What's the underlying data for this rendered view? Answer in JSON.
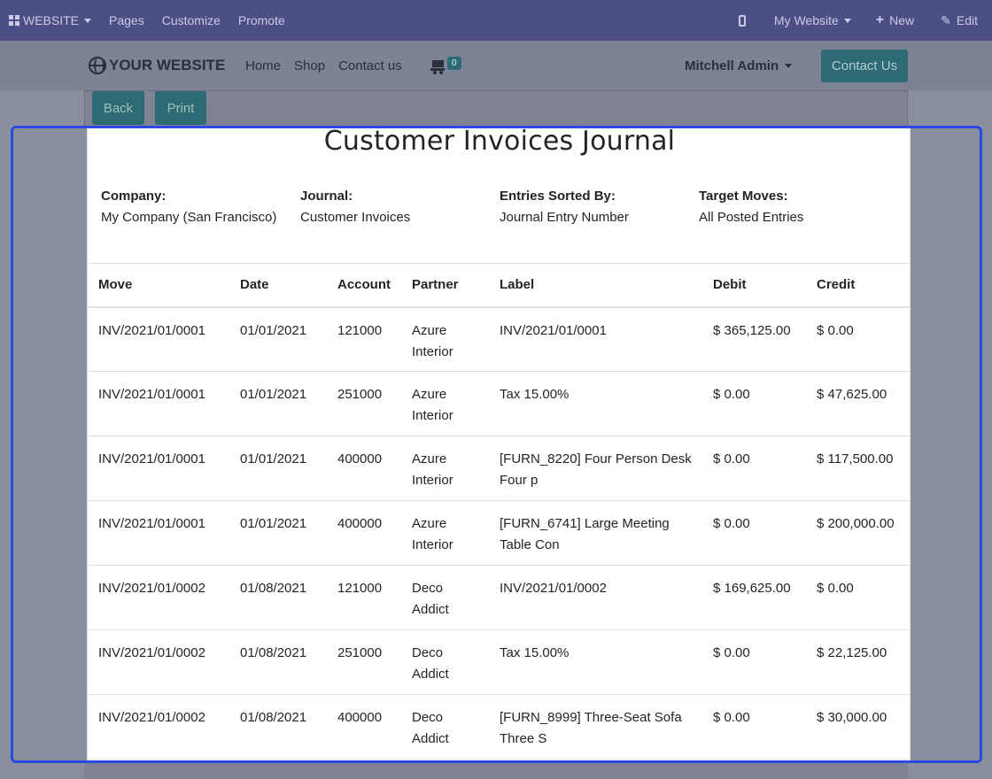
{
  "adminbar": {
    "website_label": "WEBSITE",
    "pages": "Pages",
    "customize": "Customize",
    "promote": "Promote",
    "my_website": "My Website",
    "new": "New",
    "edit": "Edit"
  },
  "site": {
    "logo": "YOUR WEBSITE",
    "nav": [
      "Home",
      "Shop",
      "Contact us"
    ],
    "cart_count": "0",
    "user": "Mitchell Admin",
    "contact_button": "Contact Us"
  },
  "actions": {
    "back": "Back",
    "print": "Print"
  },
  "report": {
    "title": "Customer Invoices Journal",
    "meta": [
      {
        "label": "Company:",
        "value": "My Company (San Francisco)"
      },
      {
        "label": "Journal:",
        "value": "Customer Invoices"
      },
      {
        "label": "Entries Sorted By:",
        "value": "Journal Entry Number"
      },
      {
        "label": "Target Moves:",
        "value": "All Posted Entries"
      }
    ],
    "columns": [
      "Move",
      "Date",
      "Account",
      "Partner",
      "Label",
      "Debit",
      "Credit"
    ],
    "rows": [
      {
        "move": "INV/2021/01/0001",
        "date": "01/01/2021",
        "account": "121000",
        "partner": "Azure Interior",
        "label": "INV/2021/01/0001",
        "debit": "$ 365,125.00",
        "credit": "$ 0.00"
      },
      {
        "move": "INV/2021/01/0001",
        "date": "01/01/2021",
        "account": "251000",
        "partner": "Azure Interior",
        "label": "Tax 15.00%",
        "debit": "$ 0.00",
        "credit": "$ 47,625.00"
      },
      {
        "move": "INV/2021/01/0001",
        "date": "01/01/2021",
        "account": "400000",
        "partner": "Azure Interior",
        "label": "[FURN_8220] Four Person Desk Four p",
        "debit": "$ 0.00",
        "credit": "$ 117,500.00"
      },
      {
        "move": "INV/2021/01/0001",
        "date": "01/01/2021",
        "account": "400000",
        "partner": "Azure Interior",
        "label": "[FURN_6741] Large Meeting Table Con",
        "debit": "$ 0.00",
        "credit": "$ 200,000.00"
      },
      {
        "move": "INV/2021/01/0002",
        "date": "01/08/2021",
        "account": "121000",
        "partner": "Deco Addict",
        "label": "INV/2021/01/0002",
        "debit": "$ 169,625.00",
        "credit": "$ 0.00"
      },
      {
        "move": "INV/2021/01/0002",
        "date": "01/08/2021",
        "account": "251000",
        "partner": "Deco Addict",
        "label": "Tax 15.00%",
        "debit": "$ 0.00",
        "credit": "$ 22,125.00"
      },
      {
        "move": "INV/2021/01/0002",
        "date": "01/08/2021",
        "account": "400000",
        "partner": "Deco Addict",
        "label": "[FURN_8999] Three-Seat Sofa Three S",
        "debit": "$ 0.00",
        "credit": "$ 30,000.00"
      }
    ]
  }
}
